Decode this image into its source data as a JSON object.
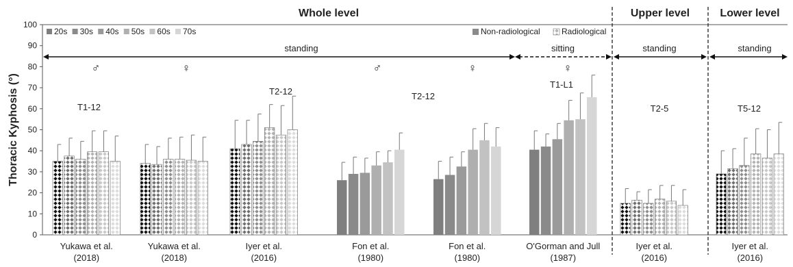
{
  "chart_data": {
    "type": "bar",
    "ylabel": "Thoracic Kyphosis (°)",
    "ylim": [
      0,
      100
    ],
    "yticks": [
      0,
      10,
      20,
      30,
      40,
      50,
      60,
      70,
      80,
      90,
      100
    ],
    "legend": {
      "age_groups": [
        "20s",
        "30s",
        "40s",
        "50s",
        "60s",
        "70s"
      ],
      "methods": [
        "Non-radiological",
        "Radiological"
      ],
      "placement": "top"
    },
    "sections": [
      {
        "title": "Whole  level"
      },
      {
        "title": "Upper level"
      },
      {
        "title": "Lower level"
      }
    ],
    "posture_labels": [
      {
        "text": "standing",
        "style": "solid"
      },
      {
        "text": "sitting",
        "style": "dashed"
      },
      {
        "text": "standing",
        "style": "solid"
      },
      {
        "text": "standing",
        "style": "solid"
      }
    ],
    "sex_symbols": [
      "♂",
      "♀",
      "♂",
      "♀",
      "♀"
    ],
    "segment_labels": [
      "T1-12",
      "T2-12",
      "T2-12",
      "T1-L1",
      "T2-5",
      "T5-12"
    ],
    "groups": [
      {
        "study": "Yukawa et al.",
        "year": "(2018)",
        "method": "Radiological",
        "values": [
          35,
          37.5,
          36,
          39.5,
          39.5,
          35
        ],
        "errors": [
          8,
          8.5,
          8.5,
          10,
          10,
          12
        ]
      },
      {
        "study": "Yukawa et al.",
        "year": "(2018)",
        "method": "Radiological",
        "values": [
          34,
          33.5,
          36,
          36,
          35.5,
          35
        ],
        "errors": [
          9,
          8.5,
          10,
          10.5,
          12,
          11.5
        ]
      },
      {
        "study": "Iyer et al.",
        "year": "(2016)",
        "method": "Radiological",
        "values": [
          41,
          43,
          44.5,
          51,
          47.5,
          50
        ],
        "errors": [
          13.5,
          11.5,
          13,
          11,
          14,
          16
        ]
      },
      {
        "study": "Fon et al.",
        "year": "(1980)",
        "method": "Non-radiological",
        "values": [
          26,
          29,
          29.5,
          33,
          34.5,
          40.5
        ],
        "errors": [
          8.5,
          8,
          7,
          6.5,
          5.5,
          8
        ]
      },
      {
        "study": "Fon et al.",
        "year": "(1980)",
        "method": "Non-radiological",
        "values": [
          26.5,
          28.5,
          32.5,
          40.5,
          45,
          42
        ],
        "errors": [
          8.5,
          8.5,
          7,
          10,
          8,
          9
        ]
      },
      {
        "study": "O'Gorman and Jull",
        "year": "(1987)",
        "method": "Non-radiological",
        "values": [
          40.5,
          42,
          45.5,
          54.5,
          55,
          65.5
        ],
        "errors": [
          9,
          6,
          7.5,
          9.5,
          12.5,
          10.5
        ]
      },
      {
        "study": "Iyer et al.",
        "year": "(2016)",
        "method": "Radiological",
        "values": [
          15,
          16.5,
          15,
          17,
          16,
          14
        ],
        "errors": [
          7,
          4,
          6.5,
          6.5,
          7.5,
          7.5
        ]
      },
      {
        "study": "Iyer et al.",
        "year": "(2016)",
        "method": "Radiological",
        "values": [
          29,
          31.5,
          33,
          38.5,
          36.5,
          38.5
        ],
        "errors": [
          11,
          9.5,
          13,
          12,
          13.5,
          15
        ]
      }
    ],
    "colors": {
      "non_radiological": [
        "#7f7f7f",
        "#8a8a8a",
        "#9a9a9a",
        "#afafaf",
        "#c2c2c2",
        "#d6d6d6"
      ],
      "radiological": [
        "#111111",
        "#6f6f6f",
        "#8e8e8e",
        "#b3b3b3",
        "#c8c8c8",
        "#dcdcdc"
      ]
    },
    "grid": false
  }
}
